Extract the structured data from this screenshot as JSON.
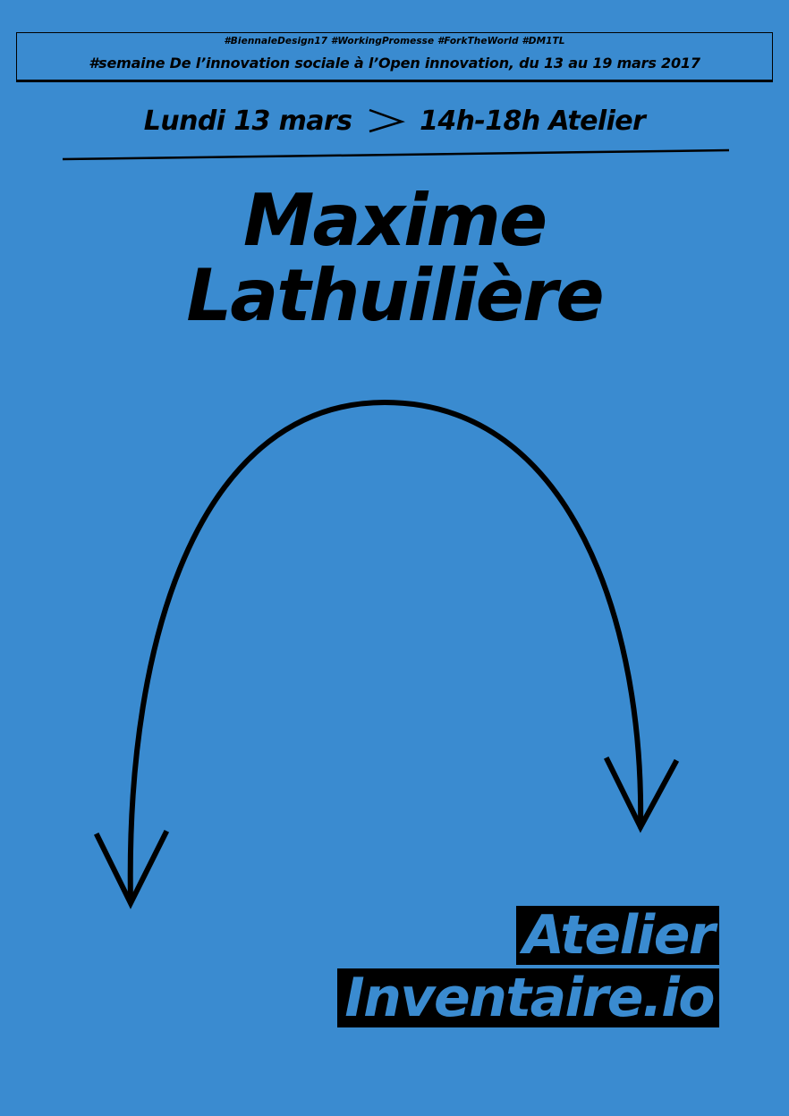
{
  "header": {
    "hashtags": "#BiennaleDesign17 #WorkingPromesse #ForkTheWorld #DM1TL",
    "semaine": "#semaine De l’innovation sociale à l’Open innovation, du 13 au 19 mars 2017"
  },
  "event": {
    "date": "Lundi 13 mars",
    "time": "14h-18h Atelier"
  },
  "speaker": {
    "first_name": "Maxime",
    "last_name": "Lathuilière"
  },
  "workshop": {
    "line1": "Atelier",
    "line2": "Inventaire.io"
  },
  "colors": {
    "background": "#3a8bd0",
    "ink": "#000000"
  }
}
